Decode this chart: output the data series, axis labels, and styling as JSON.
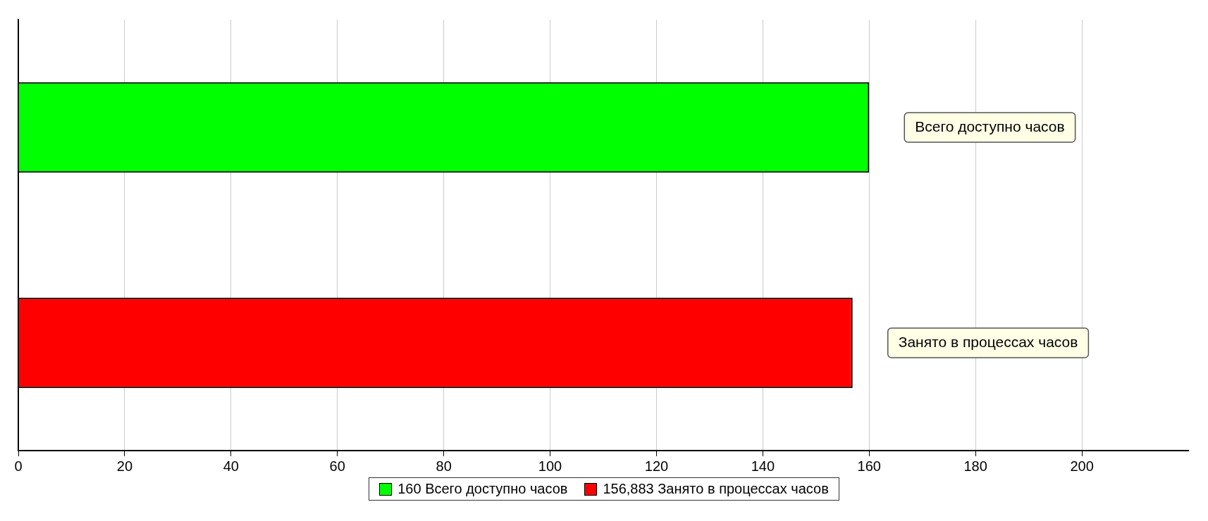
{
  "chart_data": {
    "type": "bar",
    "orientation": "horizontal",
    "categories": [
      "Всего доступно часов",
      "Занято в процессах часов"
    ],
    "series": [
      {
        "name": "160 Всего доступно часов",
        "color": "#00ff00",
        "values": [
          160,
          null
        ]
      },
      {
        "name": "156,883 Занято в процессах часов",
        "color": "#ff0000",
        "values": [
          null,
          156.883
        ]
      }
    ],
    "xlim": [
      0,
      220
    ],
    "xticks": [
      0,
      20,
      40,
      60,
      80,
      100,
      120,
      140,
      160,
      180,
      200
    ],
    "grid": "x",
    "legend": "bottom"
  }
}
